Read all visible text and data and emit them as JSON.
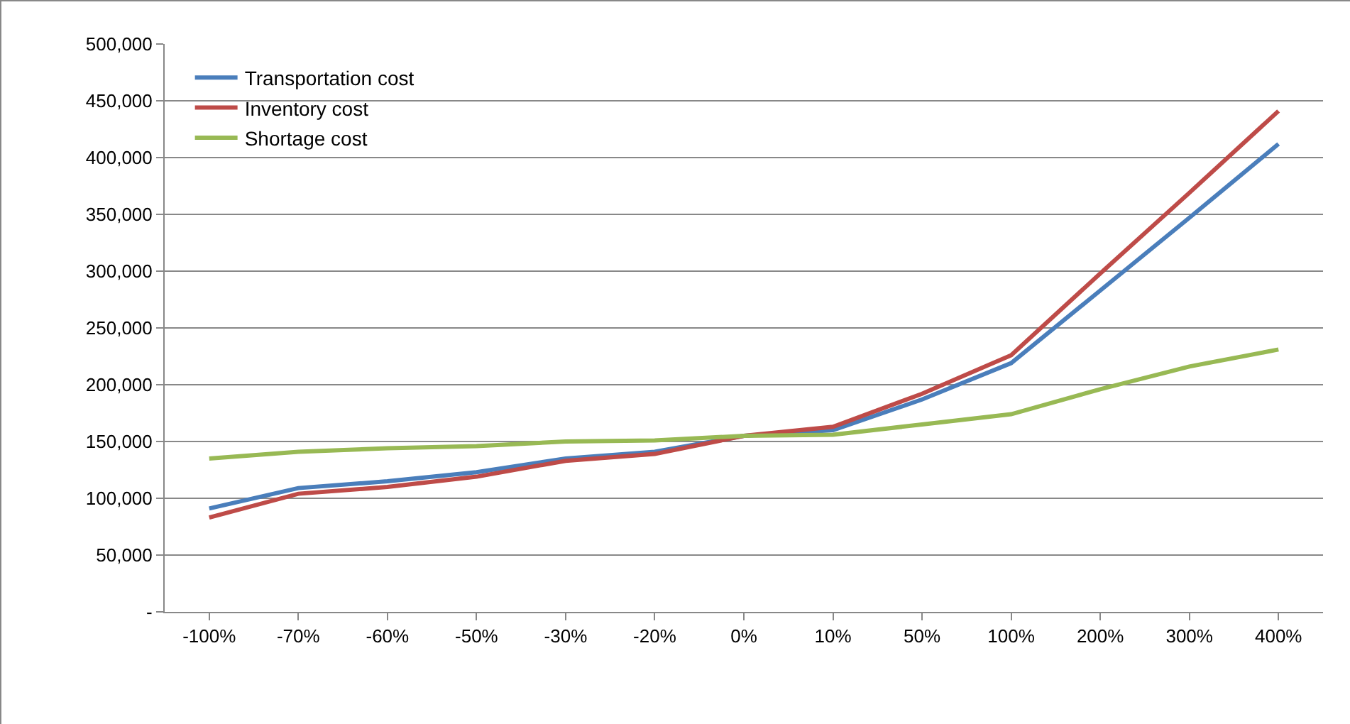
{
  "chart_data": {
    "type": "line",
    "categories": [
      "-100%",
      "-70%",
      "-60%",
      "-50%",
      "-30%",
      "-20%",
      "0%",
      "10%",
      "50%",
      "100%",
      "200%",
      "300%",
      "400%"
    ],
    "series": [
      {
        "name": "Transportation cost",
        "color": "#4a7ebb",
        "values": [
          91000,
          109000,
          115000,
          123000,
          135000,
          141000,
          155000,
          160000,
          187000,
          219000,
          283000,
          347000,
          412000
        ]
      },
      {
        "name": "Inventory cost",
        "color": "#be4b48",
        "values": [
          83000,
          104000,
          110000,
          119000,
          133000,
          139000,
          155000,
          163000,
          192000,
          226000,
          298000,
          369000,
          441000
        ]
      },
      {
        "name": "Shortage cost",
        "color": "#98b954",
        "values": [
          135000,
          141000,
          144000,
          146000,
          150000,
          151000,
          155000,
          156000,
          165000,
          174000,
          196000,
          216000,
          231000
        ]
      }
    ],
    "ylim": [
      0,
      500000
    ],
    "yticks": [
      {
        "value": 0,
        "label": "-"
      },
      {
        "value": 50000,
        "label": "50,000"
      },
      {
        "value": 100000,
        "label": "100,000"
      },
      {
        "value": 150000,
        "label": "150,000"
      },
      {
        "value": 200000,
        "label": "200,000"
      },
      {
        "value": 250000,
        "label": "250,000"
      },
      {
        "value": 300000,
        "label": "300,000"
      },
      {
        "value": 350000,
        "label": "350,000"
      },
      {
        "value": 400000,
        "label": "400,000"
      },
      {
        "value": 450000,
        "label": "450,000"
      },
      {
        "value": 500000,
        "label": "500,000"
      }
    ],
    "grid": "y",
    "legend": "top left",
    "marker": "none",
    "line_style": "solid"
  }
}
